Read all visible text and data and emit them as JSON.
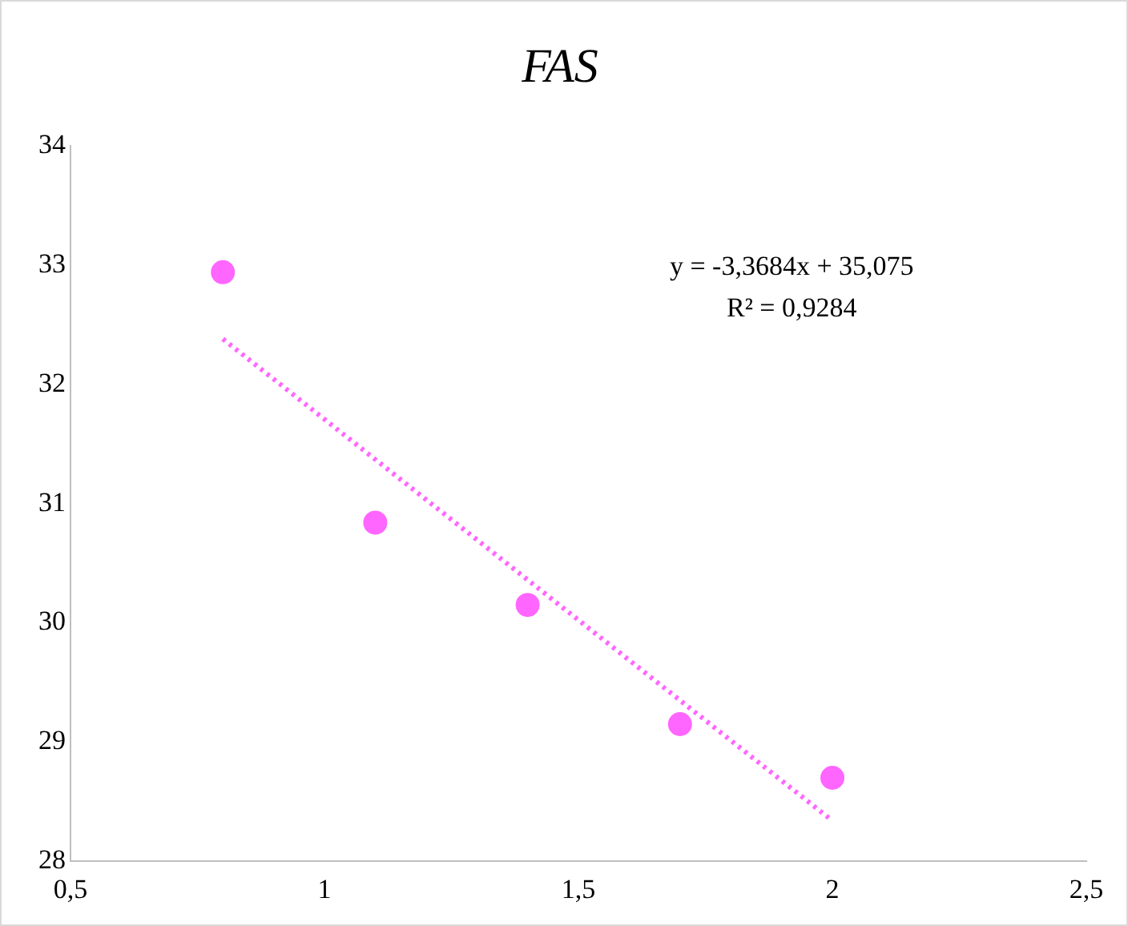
{
  "chart_data": {
    "type": "scatter",
    "title": "FAS",
    "series": [
      {
        "color": "#ff66ff",
        "marker": "circle",
        "x": [
          0.8,
          1.1,
          1.4,
          1.7,
          2.0
        ],
        "values": [
          32.94,
          30.84,
          30.15,
          29.15,
          28.7
        ]
      },
      {
        "type": "line",
        "color": "#ff66ff",
        "marker": "none",
        "line_style": "dotted",
        "x": [
          0.8,
          2.0
        ],
        "values": [
          32.38,
          28.34
        ]
      }
    ],
    "xlim": [
      0.5,
      2.5
    ],
    "xticks": [
      {
        "value": 0.5,
        "label": "0,5"
      },
      1,
      {
        "value": 1.5,
        "label": "1,5"
      },
      2,
      {
        "value": 2.5,
        "label": "2,5"
      }
    ],
    "ylim": [
      28,
      34
    ],
    "yticks": [
      28,
      29,
      30,
      31,
      32,
      33,
      34
    ],
    "grid": false,
    "legend": false,
    "annotations": [
      "y = -3,3684x + 35,075",
      "R² = 0,9284"
    ]
  }
}
